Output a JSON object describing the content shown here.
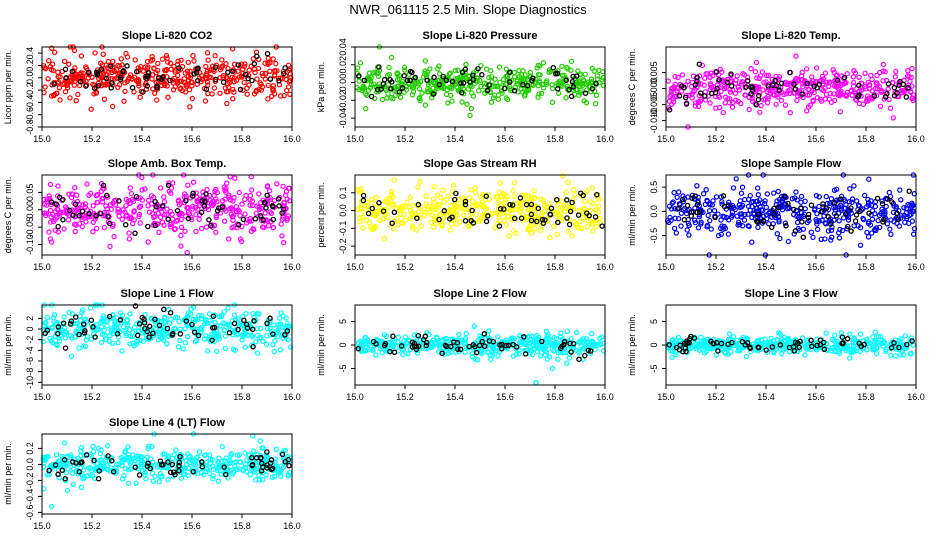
{
  "page_title": "NWR_061115  2.5 Min. Slope Diagnostics",
  "colors": {
    "red": "#ff0000",
    "green": "#22cc00",
    "magenta": "#ff00ff",
    "yellow": "#ffff00",
    "blue": "#0000ee",
    "cyan": "#00ffff",
    "black": "#000000"
  },
  "chart_data": [
    {
      "type": "scatter",
      "title": "Slope Li-820 CO2",
      "ylabel": "Licor ppm per min.",
      "xlabel": "",
      "xlim": [
        15.0,
        16.0
      ],
      "ylim": [
        -0.8,
        0.5
      ],
      "xticks": [
        "15.0",
        "15.2",
        "15.4",
        "15.6",
        "15.8",
        "16.0"
      ],
      "yticks": [
        -0.8,
        -0.6,
        -0.4,
        -0.2,
        0.0,
        0.2,
        0.4
      ],
      "ytick_labels": [
        "-0.8",
        "-0.6",
        "-0.4",
        "-0.2",
        "0.0",
        "0.2",
        "0.4"
      ],
      "color": "red",
      "spread": 0.17,
      "n_colored": 420,
      "n_black": 60
    },
    {
      "type": "scatter",
      "title": "Slope Li-820 Pressure",
      "ylabel": "kPa per min.",
      "xlabel": "",
      "xlim": [
        15.0,
        16.0
      ],
      "ylim": [
        -0.05,
        0.04
      ],
      "xticks": [
        "15.0",
        "15.2",
        "15.4",
        "15.6",
        "15.8",
        "16.0"
      ],
      "yticks": [
        -0.04,
        -0.02,
        0.0,
        0.02,
        0.04
      ],
      "ytick_labels": [
        "-0.04",
        "-0.02",
        "0.00",
        "0.02",
        "0.04"
      ],
      "color": "green",
      "spread": 0.01,
      "n_colored": 420,
      "n_black": 60
    },
    {
      "type": "scatter",
      "title": "Slope Li-820 Temp.",
      "ylabel": "degrees C per min.",
      "xlabel": "",
      "xlim": [
        15.0,
        16.0
      ],
      "ylim": [
        -0.012,
        0.013
      ],
      "xticks": [
        "15.0",
        "15.2",
        "15.4",
        "15.6",
        "15.8",
        "16.0"
      ],
      "yticks": [
        -0.01,
        -0.005,
        0.0,
        0.005
      ],
      "ytick_labels": [
        "-0.010",
        "-0.005",
        "0.000",
        "0.005"
      ],
      "color": "magenta",
      "spread": 0.003,
      "n_colored": 420,
      "n_black": 60
    },
    {
      "type": "scatter",
      "title": "Slope Amb. Box Temp.",
      "ylabel": "degrees C per min.",
      "xlabel": "",
      "xlim": [
        15.0,
        16.0
      ],
      "ylim": [
        -0.13,
        0.1
      ],
      "xticks": [
        "15.0",
        "15.2",
        "15.4",
        "15.6",
        "15.8",
        "16.0"
      ],
      "yticks": [
        -0.1,
        -0.05,
        0.0,
        0.05
      ],
      "ytick_labels": [
        "-0.10",
        "-0.05",
        "0.00",
        "0.05"
      ],
      "color": "magenta",
      "spread": 0.035,
      "n_colored": 420,
      "n_black": 60
    },
    {
      "type": "scatter",
      "title": "Slope Gas Stream RH",
      "ylabel": "percent per min.",
      "xlabel": "",
      "xlim": [
        15.0,
        16.0
      ],
      "ylim": [
        -0.25,
        0.2
      ],
      "xticks": [
        "15.0",
        "15.2",
        "15.4",
        "15.6",
        "15.8",
        "16.0"
      ],
      "yticks": [
        -0.2,
        -0.1,
        0.0,
        0.1
      ],
      "ytick_labels": [
        "-0.2",
        "-0.1",
        "0.0",
        "0.1"
      ],
      "color": "yellow",
      "spread": 0.06,
      "n_colored": 420,
      "n_black": 60
    },
    {
      "type": "scatter",
      "title": "Slope Sample Flow",
      "ylabel": "ml/min per min.",
      "xlabel": "",
      "xlim": [
        15.0,
        16.0
      ],
      "ylim": [
        -0.9,
        0.75
      ],
      "xticks": [
        "15.0",
        "15.2",
        "15.4",
        "15.6",
        "15.8",
        "16.0"
      ],
      "yticks": [
        -0.5,
        0.0,
        0.5
      ],
      "ytick_labels": [
        "-0.5",
        "0.0",
        "0.5"
      ],
      "color": "blue",
      "spread": 0.25,
      "n_colored": 420,
      "n_black": 60
    },
    {
      "type": "scatter",
      "title": "Slope Line 1 Flow",
      "ylabel": "ml/min per min.",
      "xlabel": "",
      "xlim": [
        15.0,
        16.0
      ],
      "ylim": [
        -10.5,
        4.5
      ],
      "xticks": [
        "15.0",
        "15.2",
        "15.4",
        "15.6",
        "15.8",
        "16.0"
      ],
      "yticks": [
        -10,
        -8,
        -6,
        -4,
        -2,
        0,
        2
      ],
      "ytick_labels": [
        "-10",
        "-8",
        "-6",
        "-4",
        "-2",
        "0",
        "2"
      ],
      "color": "cyan",
      "spread": 1.8,
      "n_colored": 420,
      "n_black": 60
    },
    {
      "type": "scatter",
      "title": "Slope Line 2 Flow",
      "ylabel": "ml/min per min.",
      "xlabel": "",
      "xlim": [
        15.0,
        16.0
      ],
      "ylim": [
        -8.5,
        8.5
      ],
      "xticks": [
        "15.0",
        "15.2",
        "15.4",
        "15.6",
        "15.8",
        "16.0"
      ],
      "yticks": [
        -5,
        0,
        5
      ],
      "ytick_labels": [
        "-5",
        "0",
        "5"
      ],
      "color": "cyan",
      "spread": 1.1,
      "n_colored": 420,
      "n_black": 60
    },
    {
      "type": "scatter",
      "title": "Slope Line 3 Flow",
      "ylabel": "ml/min per min.",
      "xlabel": "",
      "xlim": [
        15.0,
        16.0
      ],
      "ylim": [
        -8.5,
        8.5
      ],
      "xticks": [
        "15.0",
        "15.2",
        "15.4",
        "15.6",
        "15.8",
        "16.0"
      ],
      "yticks": [
        -5,
        0,
        5
      ],
      "ytick_labels": [
        "-5",
        "0",
        "5"
      ],
      "color": "cyan",
      "spread": 0.9,
      "n_colored": 420,
      "n_black": 60
    },
    {
      "type": "scatter",
      "title": "Slope Line 4 (LT) Flow",
      "ylabel": "ml/min per min.",
      "xlabel": "",
      "xlim": [
        15.0,
        16.0
      ],
      "ylim": [
        -0.62,
        0.38
      ],
      "xticks": [
        "15.0",
        "15.2",
        "15.4",
        "15.6",
        "15.8",
        "16.0"
      ],
      "yticks": [
        -0.6,
        -0.4,
        -0.2,
        0.0,
        0.2
      ],
      "ytick_labels": [
        "-0.6",
        "-0.4",
        "-0.2",
        "0.0",
        "0.2"
      ],
      "color": "cyan",
      "spread": 0.1,
      "n_colored": 420,
      "n_black": 60
    }
  ]
}
